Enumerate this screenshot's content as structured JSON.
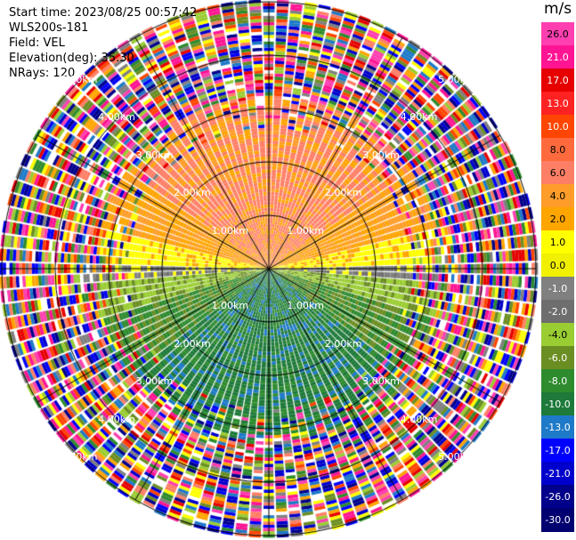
{
  "header": {
    "start_time": "Start time: 2023/08/25 00:57:42",
    "instrument": "WLS200s-181",
    "field": "Field: VEL",
    "elevation": "Elevation(deg): 35.30",
    "nrays": "NRays: 120"
  },
  "colorbar": {
    "unit": "m/s",
    "ticks": [
      "26.0",
      "21.0",
      "17.0",
      "13.0",
      "10.0",
      "8.0",
      "6.0",
      "4.0",
      "2.0",
      "1.0",
      "0.0",
      "-1.0",
      "-2.0",
      "-4.0",
      "-6.0",
      "-8.0",
      "-10.0",
      "-13.0",
      "-17.0",
      "-21.0",
      "-26.0",
      "-30.0"
    ],
    "colors": [
      "#ff3fb0",
      "#ff1493",
      "#e60000",
      "#ff2222",
      "#ff4500",
      "#ff6a3d",
      "#ff7f66",
      "#ff9d2a",
      "#ffa500",
      "#ffff00",
      "#f0f000",
      "#808080",
      "#6e6e6e",
      "#9acd32",
      "#6b8e23",
      "#2e8b2e",
      "#1e7a3a",
      "#1e7ac8",
      "#0000ff",
      "#0000cd",
      "#00008b",
      "#000070"
    ]
  },
  "chart_data": {
    "type": "ppi",
    "field": "VEL",
    "unit": "m/s",
    "range_rings_km": [
      1.0,
      2.0,
      3.0,
      4.0,
      5.0
    ],
    "ring_labels": [
      "1.00km",
      "2.00km",
      "3.00km",
      "4.00km",
      "5.00km"
    ],
    "azimuth_spokes_deg": [
      0,
      30,
      60,
      90,
      120,
      150,
      180,
      210,
      240,
      270,
      300,
      330
    ],
    "nrays": 120,
    "pattern": {
      "north": "positive velocities (orange/salmon, 4-8 m/s)",
      "east_west": "near zero (yellow / gray, -1 to 2 m/s)",
      "south": "negative velocities (green, -4 to -8 m/s)",
      "outer_ranges": "noise (random colors) beyond ~3 km"
    }
  }
}
